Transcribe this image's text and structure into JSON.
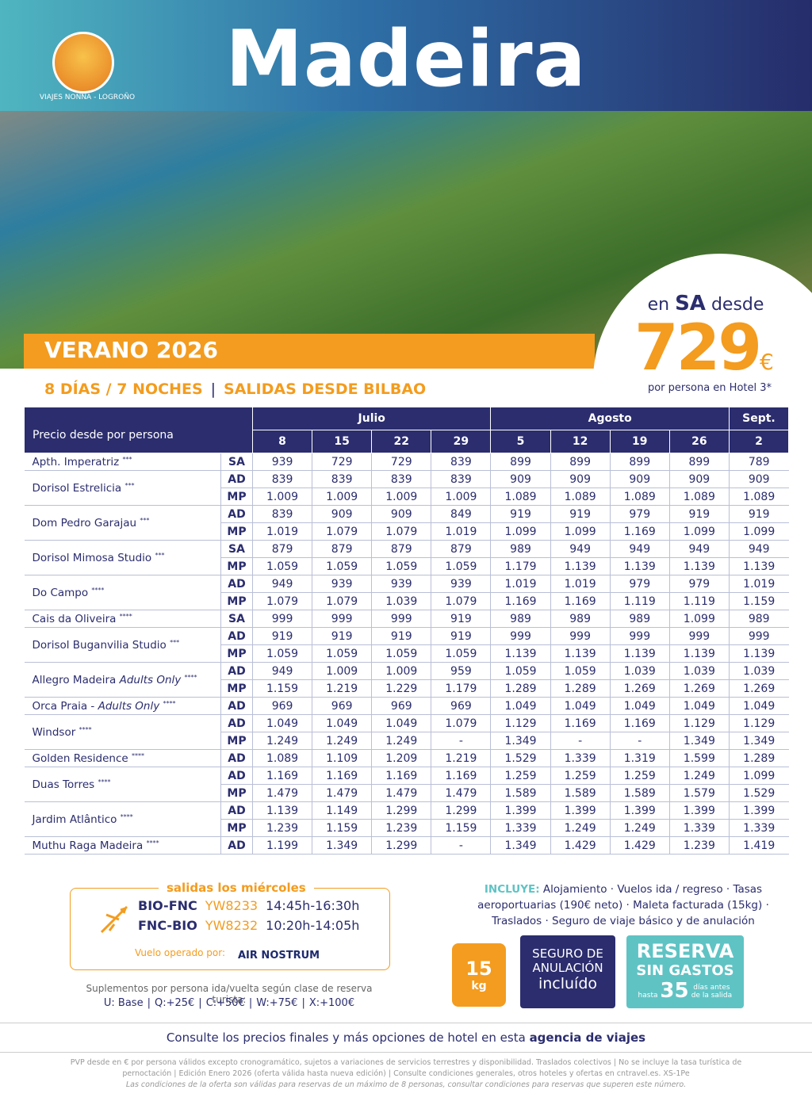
{
  "header": {
    "brand": "VIAJES NONNA - LOGROÑO",
    "title": "Madeira"
  },
  "promo": {
    "prefix": "en",
    "regime": "SA",
    "suffix": "desde",
    "price": "729",
    "currency": "€",
    "note": "por persona en Hotel 3*"
  },
  "season": "VERANO 2026",
  "subtitle": {
    "duration": "8 DÍAS / 7 NOCHES",
    "departure": "SALIDAS DESDE BILBAO"
  },
  "table": {
    "label": "Precio desde por persona",
    "months": [
      {
        "name": "Julio",
        "dates": [
          "8",
          "15",
          "22",
          "29"
        ]
      },
      {
        "name": "Agosto",
        "dates": [
          "5",
          "12",
          "19",
          "26"
        ]
      },
      {
        "name": "Sept.",
        "dates": [
          "2"
        ]
      }
    ],
    "hotels": [
      {
        "name": "Apth. Imperatriz",
        "stars": "***",
        "rows": [
          {
            "regime": "SA",
            "prices": [
              "939",
              "729",
              "729",
              "839",
              "899",
              "899",
              "899",
              "899",
              "789"
            ]
          }
        ]
      },
      {
        "name": "Dorisol Estrelicia",
        "stars": "***",
        "rows": [
          {
            "regime": "AD",
            "prices": [
              "839",
              "839",
              "839",
              "839",
              "909",
              "909",
              "909",
              "909",
              "909"
            ]
          },
          {
            "regime": "MP",
            "prices": [
              "1.009",
              "1.009",
              "1.009",
              "1.009",
              "1.089",
              "1.089",
              "1.089",
              "1.089",
              "1.089"
            ]
          }
        ]
      },
      {
        "name": "Dom Pedro Garajau",
        "stars": "***",
        "rows": [
          {
            "regime": "AD",
            "prices": [
              "839",
              "909",
              "909",
              "849",
              "919",
              "919",
              "979",
              "919",
              "919"
            ]
          },
          {
            "regime": "MP",
            "prices": [
              "1.019",
              "1.079",
              "1.079",
              "1.019",
              "1.099",
              "1.099",
              "1.169",
              "1.099",
              "1.099"
            ]
          }
        ]
      },
      {
        "name": "Dorisol Mimosa Studio",
        "stars": "***",
        "rows": [
          {
            "regime": "SA",
            "prices": [
              "879",
              "879",
              "879",
              "879",
              "989",
              "949",
              "949",
              "949",
              "949"
            ]
          },
          {
            "regime": "MP",
            "prices": [
              "1.059",
              "1.059",
              "1.059",
              "1.059",
              "1.179",
              "1.139",
              "1.139",
              "1.139",
              "1.139"
            ]
          }
        ]
      },
      {
        "name": "Do Campo",
        "stars": "****",
        "rows": [
          {
            "regime": "AD",
            "prices": [
              "949",
              "939",
              "939",
              "939",
              "1.019",
              "1.019",
              "979",
              "979",
              "1.019"
            ]
          },
          {
            "regime": "MP",
            "prices": [
              "1.079",
              "1.079",
              "1.039",
              "1.079",
              "1.169",
              "1.169",
              "1.119",
              "1.119",
              "1.159"
            ]
          }
        ]
      },
      {
        "name": "Cais da Oliveira",
        "stars": "****",
        "rows": [
          {
            "regime": "SA",
            "prices": [
              "999",
              "999",
              "999",
              "919",
              "989",
              "989",
              "989",
              "1.099",
              "989"
            ]
          }
        ]
      },
      {
        "name": "Dorisol Buganvilia Studio",
        "stars": "***",
        "rows": [
          {
            "regime": "AD",
            "prices": [
              "919",
              "919",
              "919",
              "919",
              "999",
              "999",
              "999",
              "999",
              "999"
            ]
          },
          {
            "regime": "MP",
            "prices": [
              "1.059",
              "1.059",
              "1.059",
              "1.059",
              "1.139",
              "1.139",
              "1.139",
              "1.139",
              "1.139"
            ]
          }
        ]
      },
      {
        "name": "Allegro Madeira",
        "note": "Adults Only",
        "stars": "****",
        "rows": [
          {
            "regime": "AD",
            "prices": [
              "949",
              "1.009",
              "1.009",
              "959",
              "1.059",
              "1.059",
              "1.039",
              "1.039",
              "1.039"
            ]
          },
          {
            "regime": "MP",
            "prices": [
              "1.159",
              "1.219",
              "1.229",
              "1.179",
              "1.289",
              "1.289",
              "1.269",
              "1.269",
              "1.269"
            ]
          }
        ]
      },
      {
        "name": "Orca Praia -",
        "note": "Adults Only",
        "stars": "****",
        "rows": [
          {
            "regime": "AD",
            "prices": [
              "969",
              "969",
              "969",
              "969",
              "1.049",
              "1.049",
              "1.049",
              "1.049",
              "1.049"
            ]
          }
        ]
      },
      {
        "name": "Windsor",
        "stars": "****",
        "rows": [
          {
            "regime": "AD",
            "prices": [
              "1.049",
              "1.049",
              "1.049",
              "1.079",
              "1.129",
              "1.169",
              "1.169",
              "1.129",
              "1.129"
            ]
          },
          {
            "regime": "MP",
            "prices": [
              "1.249",
              "1.249",
              "1.249",
              "-",
              "1.349",
              "-",
              "-",
              "1.349",
              "1.349"
            ]
          }
        ]
      },
      {
        "name": "Golden Residence",
        "stars": "****",
        "rows": [
          {
            "regime": "AD",
            "prices": [
              "1.089",
              "1.109",
              "1.209",
              "1.219",
              "1.529",
              "1.339",
              "1.319",
              "1.599",
              "1.289"
            ]
          }
        ]
      },
      {
        "name": "Duas Torres",
        "stars": "****",
        "rows": [
          {
            "regime": "AD",
            "prices": [
              "1.169",
              "1.169",
              "1.169",
              "1.169",
              "1.259",
              "1.259",
              "1.259",
              "1.249",
              "1.099"
            ]
          },
          {
            "regime": "MP",
            "prices": [
              "1.479",
              "1.479",
              "1.479",
              "1.479",
              "1.589",
              "1.589",
              "1.589",
              "1.579",
              "1.529"
            ]
          }
        ]
      },
      {
        "name": "Jardim Atlântico",
        "stars": "****",
        "rows": [
          {
            "regime": "AD",
            "prices": [
              "1.139",
              "1.149",
              "1.299",
              "1.299",
              "1.399",
              "1.399",
              "1.399",
              "1.399",
              "1.399"
            ]
          },
          {
            "regime": "MP",
            "prices": [
              "1.239",
              "1.159",
              "1.239",
              "1.159",
              "1.339",
              "1.249",
              "1.249",
              "1.339",
              "1.339"
            ]
          }
        ]
      },
      {
        "name": "Muthu Raga Madeira",
        "stars": "****",
        "rows": [
          {
            "regime": "AD",
            "prices": [
              "1.199",
              "1.349",
              "1.299",
              "-",
              "1.349",
              "1.429",
              "1.429",
              "1.239",
              "1.419"
            ]
          }
        ]
      }
    ]
  },
  "flights": {
    "title": "salidas los miércoles",
    "rows": [
      {
        "route": "BIO-FNC",
        "code": "YW8233",
        "time": "14:45h-16:30h"
      },
      {
        "route": "FNC-BIO",
        "code": "YW8232",
        "time": "10:20h-14:05h"
      }
    ],
    "operated": "Vuelo operado por:",
    "airline": "AIR NOSTRUM"
  },
  "supplements": {
    "title": "Suplementos por persona ida/vuelta según clase de reserva turista:",
    "items": [
      "U: Base",
      "Q:+25€",
      "C:+50€",
      "W:+75€",
      "X:+100€"
    ]
  },
  "includes": {
    "label": "INCLUYE:",
    "text": "Alojamiento · Vuelos ida / regreso · Tasas aeroportuarias (190€ neto) · Maleta facturada (15kg) · Traslados · Seguro de viaje básico y de anulación"
  },
  "badges": {
    "luggage": {
      "amount": "15",
      "unit": "kg"
    },
    "insurance": {
      "line1": "SEGURO DE",
      "line2": "ANULACIÓN",
      "line3": "incluído"
    },
    "booking": {
      "line1": "RESERVA",
      "line2": "SIN GASTOS",
      "pre": "hasta",
      "days": "35",
      "post": "días antes de la salida"
    }
  },
  "footer": {
    "text": "Consulte los precios finales y más opciones de hotel en esta",
    "highlight": "agencia de viajes",
    "fine": [
      "PVP desde en € por persona válidos excepto cronogramático, sujetos a variaciones de servicios terrestres y disponibilidad. Traslados colectivos | No se incluye la tasa turística de",
      "pernoctación | Edición Enero 2026 (oferta válida hasta nueva edición) | Consulte condiciones generales, otros hoteles y ofertas en cntravel.es. XS-1Pe",
      "Las condiciones de la oferta son válidas para reservas de un máximo de 8 personas, consultar condiciones para reservas que superen este número."
    ]
  }
}
